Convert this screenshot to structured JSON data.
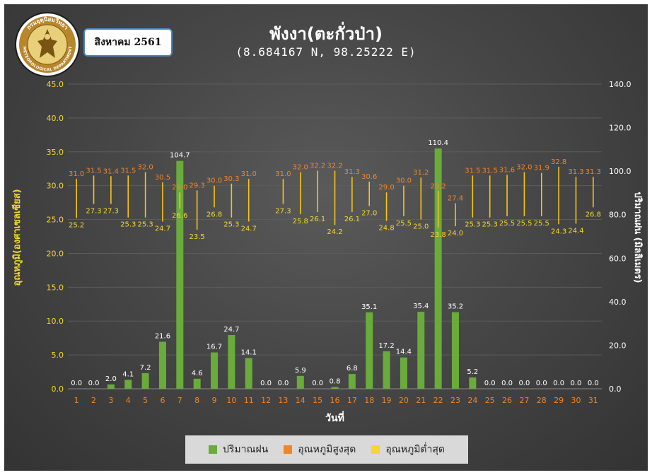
{
  "header": {
    "month_label": "สิงหาคม 2561",
    "title": "พังงา(ตะกั่วป่า)",
    "subtitle": "(8.684167 N, 98.25222 E)",
    "logo_text_top": "กรมอุตุนิยมวิทยา",
    "logo_text_bottom": "METEOROLOGICAL DEPARTMENT"
  },
  "colors": {
    "rain": "#6aab3c",
    "tmax_label": "#f0862a",
    "tmin_label": "#f5d82b",
    "range_line": "#f5c518",
    "left_axis": "#f5d82b",
    "x_ticks": "#f0862a",
    "right_axis": "#ffffff"
  },
  "chart_data": {
    "type": "bar",
    "xlabel": "วันที่",
    "ylabel_left": "อุณหภูมิ(องศาเซลเซียส)",
    "ylabel_right": "ปริมาณฝน (มิลลิเมตร)",
    "ylim_left": [
      0,
      45
    ],
    "ylim_right": [
      0,
      140
    ],
    "yticks_left": [
      "0.0",
      "5.0",
      "10.0",
      "15.0",
      "20.0",
      "25.0",
      "30.0",
      "35.0",
      "40.0",
      "45.0"
    ],
    "yticks_right": [
      "0.0",
      "20.0",
      "40.0",
      "60.0",
      "80.0",
      "100.0",
      "120.0",
      "140.0"
    ],
    "x": [
      "1",
      "2",
      "3",
      "4",
      "5",
      "6",
      "7",
      "8",
      "9",
      "10",
      "11",
      "12",
      "13",
      "14",
      "15",
      "16",
      "17",
      "18",
      "19",
      "20",
      "21",
      "22",
      "23",
      "24",
      "25",
      "26",
      "27",
      "28",
      "29",
      "30",
      "31"
    ],
    "legend_position": "bottom",
    "series": [
      {
        "name": "ปริมาณฝน",
        "axis": "right",
        "values": [
          0.0,
          0.0,
          2.0,
          4.1,
          7.2,
          21.6,
          104.7,
          4.6,
          16.7,
          24.7,
          14.1,
          0.0,
          0.0,
          5.9,
          0.0,
          0.8,
          6.8,
          35.1,
          17.2,
          14.4,
          35.4,
          110.4,
          35.2,
          5.2,
          0.0,
          0.0,
          0.0,
          0.0,
          0.0,
          0.0,
          0.0
        ],
        "labels": [
          "0.0",
          "0.0",
          "2.0",
          "4.1",
          "7.2",
          "21.6",
          "104.7",
          "4.6",
          "16.7",
          "24.7",
          "14.1",
          "0.0",
          "0.0",
          "5.9",
          "0.0",
          "0.8",
          "6.8",
          "35.1",
          "17.2",
          "14.4",
          "35.4",
          "110.4",
          "35.2",
          "5.2",
          "0.0",
          "0.0",
          "0.0",
          "0.0",
          "0.0",
          "0.0",
          "0.0"
        ]
      },
      {
        "name": "อุณหภูมิสูงสุด",
        "axis": "left",
        "values": [
          31.0,
          31.5,
          31.4,
          31.5,
          32.0,
          30.5,
          29.0,
          29.3,
          30.0,
          30.3,
          31.0,
          null,
          31.0,
          32.0,
          32.2,
          32.2,
          31.3,
          30.6,
          29.0,
          30.0,
          31.2,
          29.2,
          27.4,
          31.5,
          31.5,
          31.6,
          32.0,
          31.9,
          32.8,
          31.3,
          31.3
        ],
        "labels": [
          "31.0",
          "31.5",
          "31.4",
          "31.5",
          "32.0",
          "30.5",
          "29.0",
          "29.3",
          "30.0",
          "30.3",
          "31.0",
          "",
          "31.0",
          "32.0",
          "32.2",
          "32.2",
          "31.3",
          "30.6",
          "29.0",
          "30.0",
          "31.2",
          "29.2",
          "27.4",
          "31.5",
          "31.5",
          "31.6",
          "32.0",
          "31.9",
          "32.8",
          "31.3",
          "31.3"
        ]
      },
      {
        "name": "อุณหภูมิต่ำสุด",
        "axis": "left",
        "values": [
          25.2,
          27.3,
          27.3,
          25.3,
          25.3,
          24.7,
          26.6,
          23.5,
          26.8,
          25.3,
          24.7,
          null,
          27.3,
          25.8,
          26.1,
          24.2,
          26.1,
          27.0,
          24.8,
          25.5,
          25.0,
          23.8,
          24.0,
          25.3,
          25.3,
          25.5,
          25.5,
          25.5,
          24.3,
          24.4,
          26.8
        ],
        "labels": [
          "25.2",
          "27.3",
          "27.3",
          "25.3",
          "25.3",
          "24.7",
          "26.6",
          "23.5",
          "26.8",
          "25.3",
          "24.7",
          "",
          "27.3",
          "25.8",
          "26.1",
          "24.2",
          "26.1",
          "27.0",
          "24.8",
          "25.5",
          "25.0",
          "23.8",
          "24.0",
          "25.3",
          "25.3",
          "25.5",
          "25.5",
          "25.5",
          "24.3",
          "24.4",
          "26.8"
        ]
      }
    ]
  }
}
